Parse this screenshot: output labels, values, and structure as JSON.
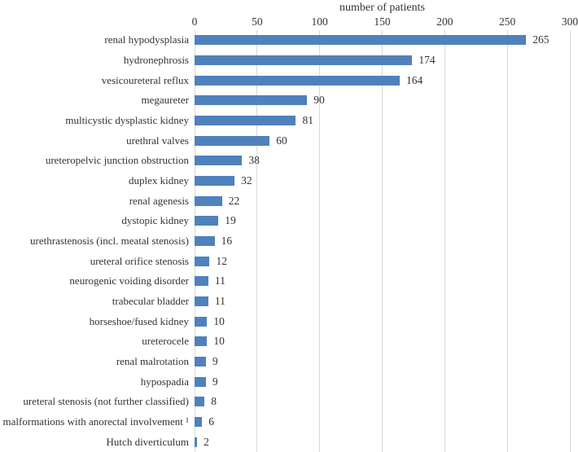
{
  "chart_data": {
    "type": "bar",
    "orientation": "horizontal",
    "title": "number of patients",
    "categories": [
      "renal hypodysplasia",
      "hydronephrosis",
      "vesicoureteral reflux",
      "megaureter",
      "multicystic dysplastic kidney",
      "urethral valves",
      "ureteropelvic junction obstruction",
      "duplex kidney",
      "renal agenesis",
      "dystopic kidney",
      "urethrastenosis (incl. meatal stenosis)",
      "ureteral orifice stenosis",
      "neurogenic voiding disorder",
      "trabecular bladder",
      "horseshoe/fused kidney",
      "ureterocele",
      "renal malrotation",
      "hypospadia",
      "ureteral stenosis (not further classified)",
      "malformations with anorectal involvement ¹",
      "Hutch diverticulum"
    ],
    "values": [
      265,
      174,
      164,
      90,
      81,
      60,
      38,
      32,
      22,
      19,
      16,
      12,
      11,
      11,
      10,
      10,
      9,
      9,
      8,
      6,
      2
    ],
    "xlim": [
      0,
      300
    ],
    "xticks": [
      0,
      50,
      100,
      150,
      200,
      250,
      300
    ],
    "grid": true,
    "value_labels_shown": true,
    "bar_color": "#4f81bd",
    "gridline_color": "#d9d9d9",
    "text_color": "#333333"
  }
}
